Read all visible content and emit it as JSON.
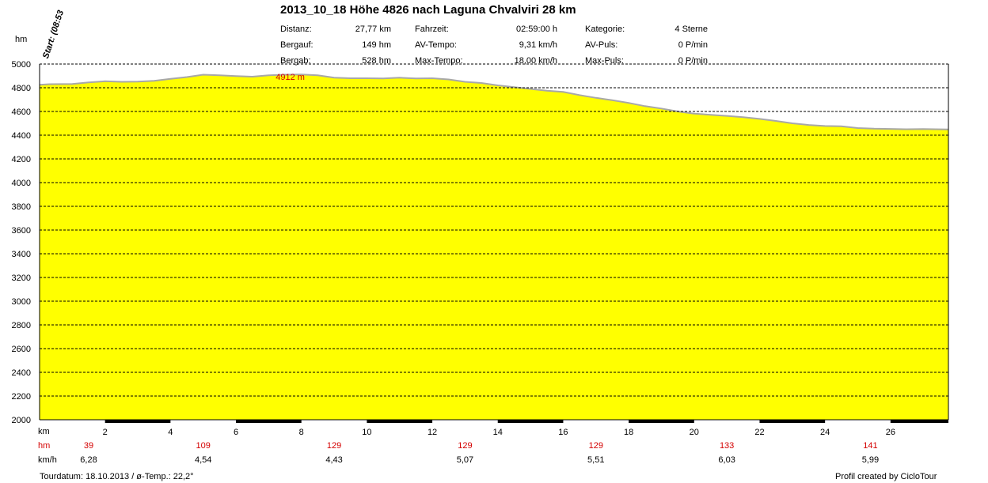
{
  "title": "2013_10_18 Höhe 4826 nach Laguna Chvalviri 28 km",
  "stats": [
    {
      "label": "Distanz:",
      "value": "27,77 km"
    },
    {
      "label": "Bergauf:",
      "value": "149 hm"
    },
    {
      "label": "Bergab:",
      "value": "528 hm"
    },
    {
      "label": "Fahrzeit:",
      "value": "02:59:00 h"
    },
    {
      "label": "AV-Tempo:",
      "value": "9,31 km/h"
    },
    {
      "label": "Max-Tempo:",
      "value": "18,00 km/h"
    },
    {
      "label": "Kategorie:",
      "value": "4 Sterne"
    },
    {
      "label": "AV-Puls:",
      "value": "0 P/min"
    },
    {
      "label": "Max-Puls:",
      "value": "0 P/min"
    }
  ],
  "start_label": "Start: (08:53",
  "footer": {
    "tourdatum": "Tourdatum: 18.10.2013  /  ø-Temp.: 22,2°",
    "credit": "Profil created by CicloTour"
  },
  "chart_data": {
    "type": "area",
    "title": "2013_10_18 Höhe 4826 nach Laguna Chvalviri 28 km",
    "ylabel": "hm",
    "xlabel": "km",
    "ylim": [
      2000,
      5000
    ],
    "xlim": [
      0,
      27.77
    ],
    "yticks": [
      2000,
      2200,
      2400,
      2600,
      2800,
      3000,
      3200,
      3400,
      3600,
      3800,
      4000,
      4200,
      4400,
      4600,
      4800,
      5000
    ],
    "xticks": [
      2,
      4,
      6,
      8,
      10,
      12,
      14,
      16,
      18,
      20,
      22,
      24,
      26
    ],
    "grid": true,
    "fill_color": "#ffff00",
    "line_color": "#a8a8a8",
    "max_annotation": {
      "label": "4912 m",
      "x": 7.9,
      "y": 4912
    },
    "x": [
      0,
      0.3,
      1,
      1.5,
      2,
      2.5,
      3,
      3.5,
      4,
      4.5,
      5,
      5.5,
      6,
      6.5,
      7,
      7.5,
      8,
      8.5,
      9,
      9.5,
      10,
      10.5,
      11,
      11.5,
      12,
      12.5,
      13,
      13.5,
      14,
      14.5,
      15,
      15.5,
      16,
      16.5,
      17,
      17.5,
      18,
      18.5,
      19,
      19.5,
      20,
      20.5,
      21,
      21.5,
      22,
      22.5,
      23,
      23.5,
      24,
      24.5,
      25,
      25.5,
      26,
      26.5,
      27,
      27.77
    ],
    "y": [
      4825,
      4830,
      4832,
      4845,
      4855,
      4850,
      4852,
      4858,
      4875,
      4890,
      4910,
      4905,
      4898,
      4893,
      4905,
      4910,
      4912,
      4905,
      4885,
      4880,
      4880,
      4878,
      4885,
      4878,
      4880,
      4870,
      4850,
      4840,
      4820,
      4805,
      4790,
      4775,
      4765,
      4738,
      4715,
      4695,
      4672,
      4645,
      4625,
      4600,
      4582,
      4572,
      4563,
      4552,
      4537,
      4520,
      4500,
      4486,
      4477,
      4475,
      4460,
      4455,
      4453,
      4450,
      4452,
      4448
    ],
    "segments": [
      {
        "x_start": 0,
        "x_end": 3,
        "hm": 39,
        "speed": "6,28"
      },
      {
        "x_start": 3,
        "x_end": 7,
        "hm": 109,
        "speed": "4,54"
      },
      {
        "x_start": 7,
        "x_end": 11,
        "hm": 129,
        "speed": "4,43"
      },
      {
        "x_start": 11,
        "x_end": 15,
        "hm": 129,
        "speed": "5,07"
      },
      {
        "x_start": 15,
        "x_end": 19,
        "hm": 129,
        "speed": "5,51"
      },
      {
        "x_start": 19,
        "x_end": 23,
        "hm": 133,
        "speed": "6,03"
      },
      {
        "x_start": 23,
        "x_end": 27.77,
        "hm": 141,
        "speed": "5,99"
      }
    ],
    "row_labels": {
      "km": "km",
      "hm": "hm",
      "speed": "km/h"
    }
  }
}
